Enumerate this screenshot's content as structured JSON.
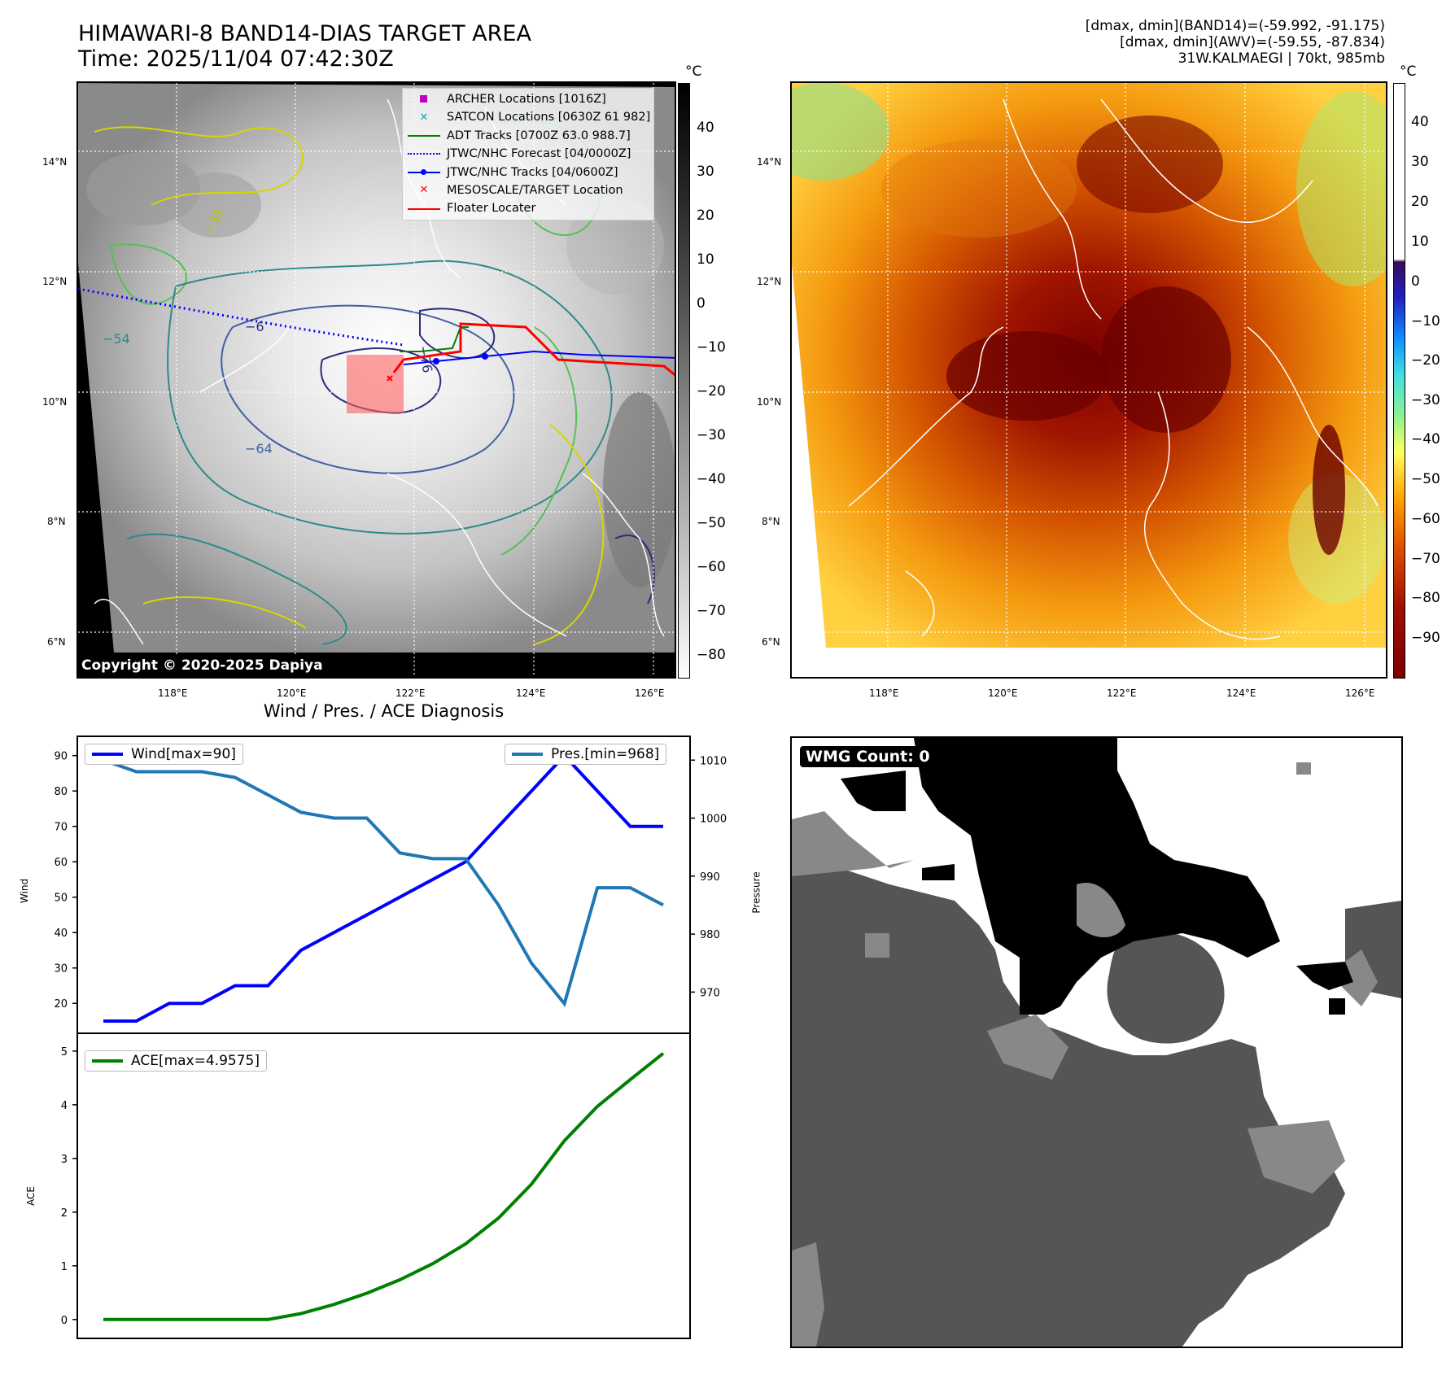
{
  "header": {
    "title_line1": "HIMAWARI-8 BAND14-DIAS TARGET AREA",
    "title_line2": "Time: 2025/11/04 07:42:30Z",
    "info_line1": "[dmax, dmin](BAND14)=(-59.992, -91.175)",
    "info_line2": "[dmax, dmin](AWV)=(-59.55, -87.834)",
    "info_line3": "31W.KALMAEGI | 70kt, 985mb"
  },
  "map": {
    "lat_labels": [
      "14°N",
      "12°N",
      "10°N",
      "8°N",
      "6°N"
    ],
    "lon_labels": [
      "118°E",
      "120°E",
      "122°E",
      "124°E",
      "126°E"
    ],
    "copyright": "Copyright © 2020-2025 Dapiya",
    "contour_labels": [
      "−31",
      "−54",
      "−64",
      "−76",
      "−6"
    ],
    "legend": [
      {
        "label": "ARCHER Locations [1016Z]",
        "color": "#c000c0",
        "symbol": "square"
      },
      {
        "label": "SATCON Locations [0630Z 61 982]",
        "color": "#00b0b0",
        "symbol": "x"
      },
      {
        "label": "ADT Tracks [0700Z 63.0 988.7]",
        "color": "#008000",
        "symbol": "line"
      },
      {
        "label": "JTWC/NHC Forecast [04/0000Z]",
        "color": "#0000ff",
        "symbol": "dotted"
      },
      {
        "label": "JTWC/NHC Tracks [04/0600Z]",
        "color": "#0000ff",
        "symbol": "line-dot"
      },
      {
        "label": "MESOSCALE/TARGET Location",
        "color": "#ff0000",
        "symbol": "x"
      },
      {
        "label": "Floater Locater",
        "color": "#ff0000",
        "symbol": "line"
      }
    ]
  },
  "colorbars": {
    "unit": "°C",
    "left_ticks": [
      "40",
      "30",
      "20",
      "10",
      "0",
      "−10",
      "−20",
      "−30",
      "−40",
      "−50",
      "−60",
      "−70",
      "−80"
    ],
    "right_ticks": [
      "40",
      "30",
      "20",
      "10",
      "0",
      "−10",
      "−20",
      "−30",
      "−40",
      "−50",
      "−60",
      "−70",
      "−80",
      "−90"
    ]
  },
  "diagnosis": {
    "title": "Wind / Pres. / ACE Diagnosis",
    "wind_legend": "Wind[max=90]",
    "pres_legend": "Pres.[min=968]",
    "ace_legend": "ACE[max=4.9575]",
    "wind_ylabel": "Wind",
    "pres_ylabel": "Pressure",
    "ace_ylabel": "ACE",
    "wind_ticks": [
      "90",
      "80",
      "70",
      "60",
      "50",
      "40",
      "30",
      "20"
    ],
    "pres_ticks": [
      "1010",
      "1000",
      "990",
      "980",
      "970"
    ],
    "ace_ticks": [
      "5",
      "4",
      "3",
      "2",
      "1",
      "0"
    ],
    "colors": {
      "wind": "#0000ff",
      "pres": "#1f77b4",
      "ace": "#008000"
    }
  },
  "wmg": {
    "label": "WMG Count: 0"
  },
  "chart_data": [
    {
      "type": "line",
      "title": "Wind / Pres. / ACE Diagnosis",
      "x": [
        0,
        1,
        2,
        3,
        4,
        5,
        6,
        7,
        8,
        9,
        10,
        11,
        12,
        13,
        14,
        15,
        16,
        17
      ],
      "series": [
        {
          "name": "Wind",
          "axis": "left",
          "ylim": [
            15,
            92
          ],
          "values": [
            15,
            15,
            20,
            20,
            25,
            25,
            35,
            40,
            45,
            50,
            55,
            60,
            70,
            80,
            90,
            80,
            70,
            70
          ]
        },
        {
          "name": "Pressure",
          "axis": "right",
          "ylim": [
            965,
            1012
          ],
          "values": [
            1010,
            1008,
            1008,
            1008,
            1007,
            1004,
            1001,
            1000,
            1000,
            994,
            993,
            993,
            985,
            975,
            968,
            988,
            988,
            985
          ]
        }
      ],
      "legend": [
        "Wind[max=90]",
        "Pres.[min=968]"
      ]
    },
    {
      "type": "line",
      "title": "ACE",
      "x": [
        0,
        1,
        2,
        3,
        4,
        5,
        6,
        7,
        8,
        9,
        10,
        11,
        12,
        13,
        14,
        15,
        16,
        17
      ],
      "series": [
        {
          "name": "ACE",
          "ylim": [
            -0.2,
            5.15
          ],
          "values": [
            0,
            0,
            0,
            0,
            0,
            0,
            0.11,
            0.28,
            0.49,
            0.74,
            1.04,
            1.41,
            1.89,
            2.52,
            3.33,
            3.97,
            4.47,
            4.9575
          ]
        }
      ],
      "legend": [
        "ACE[max=4.9575]"
      ]
    }
  ]
}
